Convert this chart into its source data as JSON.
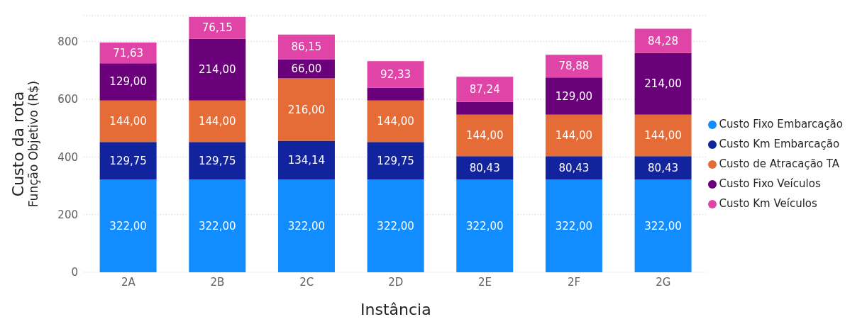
{
  "chart_data": {
    "type": "bar",
    "stacked": true,
    "xlabel": "Instância",
    "ylabel": "Custo da rota\nFunção Objetivo (R$)",
    "categories": [
      "2A",
      "2B",
      "2C",
      "2D",
      "2E",
      "2F",
      "2G"
    ],
    "ylim": [
      0,
      890
    ],
    "yticks": [
      0,
      200,
      400,
      600,
      800
    ],
    "grid": "y",
    "legend": "right",
    "series": [
      {
        "name": "Custo Fixo Embarcação",
        "color": "#118dff",
        "values": [
          322,
          322,
          322,
          322,
          322,
          322,
          322
        ],
        "value_labels": [
          "322,00",
          "322,00",
          "322,00",
          "322,00",
          "322,00",
          "322,00",
          "322,00"
        ]
      },
      {
        "name": "Custo Km Embarcação",
        "color": "#12239e",
        "values": [
          129.75,
          129.75,
          134.14,
          129.75,
          80.43,
          80.43,
          80.43
        ],
        "value_labels": [
          "129,75",
          "129,75",
          "134,14",
          "129,75",
          "80,43",
          "80,43",
          "80,43"
        ]
      },
      {
        "name": "Custo de Atracação TA",
        "color": "#e66c37",
        "values": [
          144,
          144,
          216,
          144,
          144,
          144,
          144
        ],
        "value_labels": [
          "144,00",
          "144,00",
          "216,00",
          "144,00",
          "144,00",
          "144,00",
          "144,00"
        ]
      },
      {
        "name": "Custo Fixo Veículos",
        "color": "#6b007b",
        "values": [
          129,
          214,
          66,
          44,
          44,
          129,
          214
        ],
        "value_labels": [
          "129,00",
          "214,00",
          "66,00",
          null,
          null,
          "129,00",
          "214,00"
        ]
      },
      {
        "name": "Custo Km Veículos",
        "color": "#e044a7",
        "values": [
          71.63,
          76.15,
          86.15,
          92.33,
          87.24,
          78.88,
          84.28
        ],
        "value_labels": [
          "71,63",
          "76,15",
          "86,15",
          "92,33",
          "87,24",
          "78,88",
          "84,28"
        ]
      }
    ]
  }
}
